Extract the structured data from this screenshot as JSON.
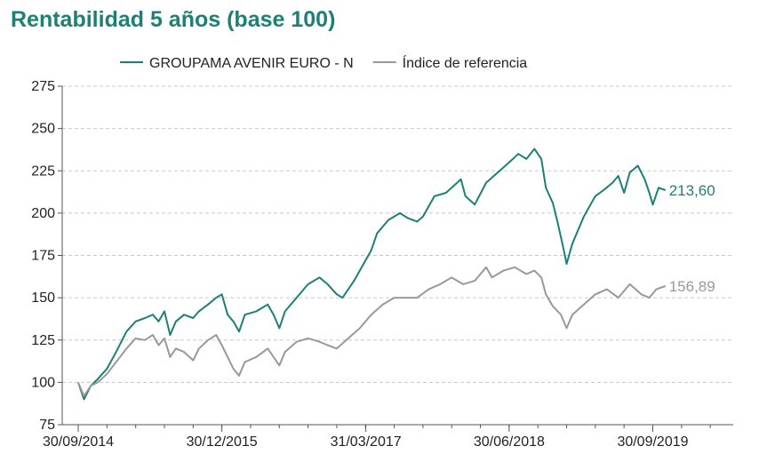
{
  "chart_data": {
    "type": "line",
    "title": "Rentabilidad 5 años (base 100)",
    "xlabel": "",
    "ylabel": "",
    "ylim": [
      75,
      275
    ],
    "yticks": [
      75,
      100,
      125,
      150,
      175,
      200,
      225,
      250,
      275
    ],
    "grid": true,
    "legend_position": "top",
    "x_tick_labels": [
      "30/09/2014",
      "30/12/2015",
      "31/03/2017",
      "30/06/2018",
      "30/09/2019"
    ],
    "x_range_years": [
      2014.75,
      2020.45
    ],
    "series": [
      {
        "name": "GROUPAMA AVENIR EURO - N",
        "color": "#1d8076",
        "end_label": "213,60",
        "points": [
          [
            2014.75,
            100
          ],
          [
            2014.8,
            90
          ],
          [
            2014.86,
            98
          ],
          [
            2014.92,
            102
          ],
          [
            2015.0,
            108
          ],
          [
            2015.08,
            118
          ],
          [
            2015.17,
            130
          ],
          [
            2015.25,
            136
          ],
          [
            2015.33,
            138
          ],
          [
            2015.4,
            140
          ],
          [
            2015.45,
            136
          ],
          [
            2015.5,
            142
          ],
          [
            2015.55,
            128
          ],
          [
            2015.6,
            136
          ],
          [
            2015.67,
            140
          ],
          [
            2015.75,
            138
          ],
          [
            2015.8,
            142
          ],
          [
            2015.88,
            146
          ],
          [
            2015.95,
            150
          ],
          [
            2016.0,
            152
          ],
          [
            2016.05,
            140
          ],
          [
            2016.1,
            136
          ],
          [
            2016.15,
            130
          ],
          [
            2016.2,
            140
          ],
          [
            2016.3,
            142
          ],
          [
            2016.4,
            146
          ],
          [
            2016.45,
            140
          ],
          [
            2016.5,
            132
          ],
          [
            2016.55,
            142
          ],
          [
            2016.65,
            150
          ],
          [
            2016.75,
            158
          ],
          [
            2016.85,
            162
          ],
          [
            2016.92,
            158
          ],
          [
            2017.0,
            152
          ],
          [
            2017.05,
            150
          ],
          [
            2017.1,
            155
          ],
          [
            2017.15,
            160
          ],
          [
            2017.25,
            172
          ],
          [
            2017.3,
            178
          ],
          [
            2017.35,
            188
          ],
          [
            2017.45,
            196
          ],
          [
            2017.55,
            200
          ],
          [
            2017.62,
            197
          ],
          [
            2017.7,
            195
          ],
          [
            2017.75,
            198
          ],
          [
            2017.85,
            210
          ],
          [
            2017.95,
            212
          ],
          [
            2018.0,
            215
          ],
          [
            2018.08,
            220
          ],
          [
            2018.12,
            210
          ],
          [
            2018.2,
            205
          ],
          [
            2018.3,
            218
          ],
          [
            2018.4,
            224
          ],
          [
            2018.5,
            230
          ],
          [
            2018.58,
            235
          ],
          [
            2018.65,
            232
          ],
          [
            2018.72,
            238
          ],
          [
            2018.78,
            232
          ],
          [
            2018.82,
            215
          ],
          [
            2018.88,
            206
          ],
          [
            2018.92,
            195
          ],
          [
            2018.97,
            180
          ],
          [
            2019.0,
            170
          ],
          [
            2019.05,
            182
          ],
          [
            2019.15,
            198
          ],
          [
            2019.25,
            210
          ],
          [
            2019.33,
            214
          ],
          [
            2019.4,
            218
          ],
          [
            2019.45,
            222
          ],
          [
            2019.5,
            212
          ],
          [
            2019.55,
            224
          ],
          [
            2019.62,
            228
          ],
          [
            2019.68,
            220
          ],
          [
            2019.72,
            212
          ],
          [
            2019.75,
            205
          ],
          [
            2019.8,
            215
          ],
          [
            2019.86,
            213.6
          ]
        ]
      },
      {
        "name": "Índice de referencia",
        "color": "#999999",
        "end_label": "156,89",
        "points": [
          [
            2014.75,
            100
          ],
          [
            2014.8,
            92
          ],
          [
            2014.86,
            98
          ],
          [
            2014.92,
            100
          ],
          [
            2015.0,
            105
          ],
          [
            2015.08,
            112
          ],
          [
            2015.17,
            120
          ],
          [
            2015.25,
            126
          ],
          [
            2015.33,
            125
          ],
          [
            2015.4,
            128
          ],
          [
            2015.45,
            122
          ],
          [
            2015.5,
            126
          ],
          [
            2015.55,
            115
          ],
          [
            2015.6,
            120
          ],
          [
            2015.67,
            118
          ],
          [
            2015.75,
            113
          ],
          [
            2015.8,
            120
          ],
          [
            2015.88,
            125
          ],
          [
            2015.95,
            128
          ],
          [
            2016.0,
            122
          ],
          [
            2016.05,
            115
          ],
          [
            2016.1,
            108
          ],
          [
            2016.15,
            104
          ],
          [
            2016.2,
            112
          ],
          [
            2016.3,
            115
          ],
          [
            2016.4,
            120
          ],
          [
            2016.45,
            115
          ],
          [
            2016.5,
            110
          ],
          [
            2016.55,
            118
          ],
          [
            2016.65,
            124
          ],
          [
            2016.75,
            126
          ],
          [
            2016.85,
            124
          ],
          [
            2016.92,
            122
          ],
          [
            2017.0,
            120
          ],
          [
            2017.1,
            126
          ],
          [
            2017.2,
            132
          ],
          [
            2017.3,
            140
          ],
          [
            2017.4,
            146
          ],
          [
            2017.5,
            150
          ],
          [
            2017.6,
            150
          ],
          [
            2017.7,
            150
          ],
          [
            2017.8,
            155
          ],
          [
            2017.9,
            158
          ],
          [
            2018.0,
            162
          ],
          [
            2018.1,
            158
          ],
          [
            2018.2,
            160
          ],
          [
            2018.3,
            168
          ],
          [
            2018.35,
            162
          ],
          [
            2018.45,
            166
          ],
          [
            2018.55,
            168
          ],
          [
            2018.65,
            164
          ],
          [
            2018.72,
            166
          ],
          [
            2018.78,
            162
          ],
          [
            2018.82,
            152
          ],
          [
            2018.88,
            145
          ],
          [
            2018.95,
            140
          ],
          [
            2019.0,
            132
          ],
          [
            2019.05,
            140
          ],
          [
            2019.15,
            146
          ],
          [
            2019.25,
            152
          ],
          [
            2019.35,
            155
          ],
          [
            2019.45,
            150
          ],
          [
            2019.55,
            158
          ],
          [
            2019.65,
            152
          ],
          [
            2019.72,
            150
          ],
          [
            2019.78,
            155
          ],
          [
            2019.86,
            156.89
          ]
        ]
      }
    ]
  }
}
